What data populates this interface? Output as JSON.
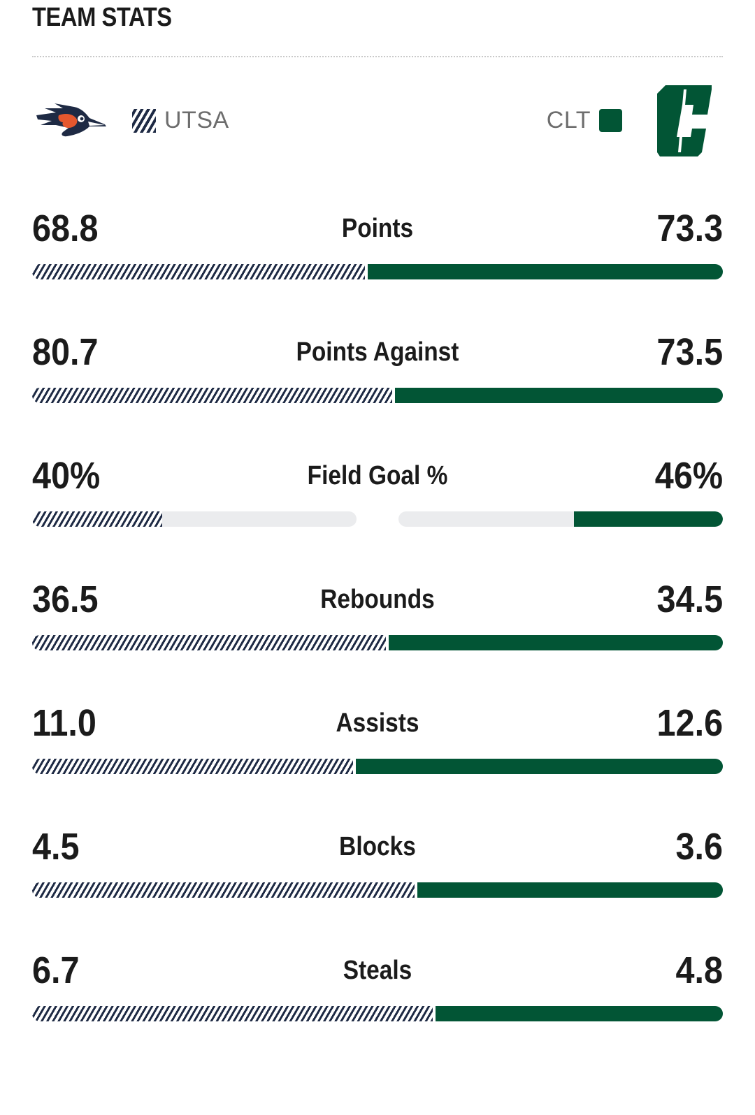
{
  "header": {
    "title": "TEAM STATS"
  },
  "teams": {
    "away": {
      "name": "UTSA",
      "logo_icon": "roadrunner-logo-icon",
      "pattern": "striped",
      "color": "#1e2a44"
    },
    "home": {
      "name": "CLT",
      "logo_icon": "charlotte-c-logo-icon",
      "color": "#025535"
    }
  },
  "stats": [
    {
      "label": "Points",
      "away": "68.8",
      "home": "73.3",
      "away_value": 68.8,
      "home_value": 73.3,
      "type": "split"
    },
    {
      "label": "Points Against",
      "away": "80.7",
      "home": "73.5",
      "away_value": 80.7,
      "home_value": 73.5,
      "type": "split"
    },
    {
      "label": "Field Goal %",
      "away": "40%",
      "home": "46%",
      "away_value": 40,
      "home_value": 46,
      "type": "percent"
    },
    {
      "label": "Rebounds",
      "away": "36.5",
      "home": "34.5",
      "away_value": 36.5,
      "home_value": 34.5,
      "type": "split"
    },
    {
      "label": "Assists",
      "away": "11.0",
      "home": "12.6",
      "away_value": 11.0,
      "home_value": 12.6,
      "type": "split"
    },
    {
      "label": "Blocks",
      "away": "4.5",
      "home": "3.6",
      "away_value": 4.5,
      "home_value": 3.6,
      "type": "split"
    },
    {
      "label": "Steals",
      "away": "6.7",
      "home": "4.8",
      "away_value": 6.7,
      "home_value": 4.8,
      "type": "split"
    }
  ]
}
